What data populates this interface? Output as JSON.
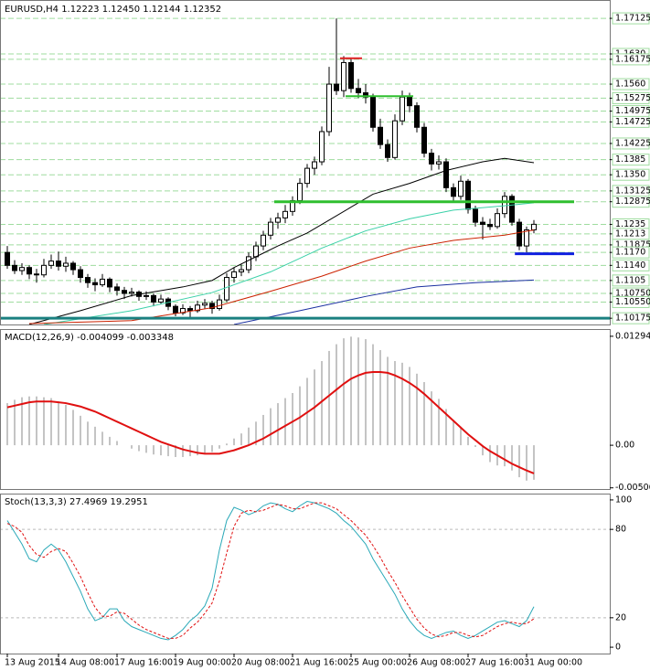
{
  "chart_data": [
    {
      "type": "candlestick",
      "title": "EURUSD,H4  1.12223 1.12450 1.12144 1.12352",
      "categories": [
        "13 Aug 2015",
        null,
        null,
        null,
        null,
        null,
        null,
        "14 Aug 08:00",
        null,
        null,
        null,
        null,
        null,
        null,
        null,
        "17 Aug 16:00",
        null,
        null,
        null,
        null,
        null,
        null,
        null,
        "19 Aug 00:00",
        null,
        null,
        null,
        null,
        null,
        null,
        null,
        "20 Aug 08:00",
        null,
        null,
        null,
        null,
        null,
        null,
        null,
        "21 Aug 16:00",
        null,
        null,
        null,
        null,
        null,
        null,
        null,
        "25 Aug 00:00",
        null,
        null,
        null,
        null,
        null,
        null,
        null,
        "26 Aug 08:00",
        null,
        null,
        null,
        null,
        null,
        null,
        null,
        "27 Aug 16:00",
        null,
        null,
        null,
        null,
        null,
        null,
        null,
        "31 Aug 00:00",
        null
      ],
      "ohlc": [
        [
          1.117,
          1.1185,
          1.1132,
          1.114
        ],
        [
          1.114,
          1.1152,
          1.112,
          1.1128
        ],
        [
          1.1128,
          1.1145,
          1.1118,
          1.1135
        ],
        [
          1.1135,
          1.114,
          1.1108,
          1.112
        ],
        [
          1.112,
          1.1132,
          1.11,
          1.1118
        ],
        [
          1.1118,
          1.1155,
          1.1112,
          1.114
        ],
        [
          1.114,
          1.1165,
          1.1132,
          1.115
        ],
        [
          1.115,
          1.1172,
          1.1128,
          1.1138
        ],
        [
          1.1138,
          1.116,
          1.1125,
          1.1145
        ],
        [
          1.1145,
          1.115,
          1.1118,
          1.113
        ],
        [
          1.113,
          1.1138,
          1.11,
          1.1112
        ],
        [
          1.1112,
          1.112,
          1.1088,
          1.11
        ],
        [
          1.11,
          1.111,
          1.108,
          1.1095
        ],
        [
          1.1095,
          1.112,
          1.109,
          1.1108
        ],
        [
          1.1108,
          1.1112,
          1.1078,
          1.109
        ],
        [
          1.109,
          1.1098,
          1.107,
          1.1082
        ],
        [
          1.1082,
          1.109,
          1.1062,
          1.1075
        ],
        [
          1.1075,
          1.1088,
          1.1068,
          1.1078
        ],
        [
          1.1078,
          1.1082,
          1.1058,
          1.1068
        ],
        [
          1.1068,
          1.108,
          1.106,
          1.107
        ],
        [
          1.107,
          1.1075,
          1.1045,
          1.1055
        ],
        [
          1.1055,
          1.1072,
          1.105,
          1.1062
        ],
        [
          1.1062,
          1.1066,
          1.1036,
          1.1045
        ],
        [
          1.1045,
          1.105,
          1.1022,
          1.103
        ],
        [
          1.103,
          1.105,
          1.1025,
          1.104
        ],
        [
          1.104,
          1.1046,
          1.102,
          1.1035
        ],
        [
          1.1035,
          1.1058,
          1.103,
          1.1048
        ],
        [
          1.1048,
          1.1062,
          1.104,
          1.1052
        ],
        [
          1.1052,
          1.1058,
          1.1028,
          1.104
        ],
        [
          1.104,
          1.1072,
          1.1035,
          1.106
        ],
        [
          1.106,
          1.1122,
          1.1055,
          1.1112
        ],
        [
          1.1112,
          1.1135,
          1.11,
          1.1125
        ],
        [
          1.1125,
          1.1142,
          1.1115,
          1.113
        ],
        [
          1.113,
          1.117,
          1.1122,
          1.116
        ],
        [
          1.116,
          1.1195,
          1.115,
          1.1185
        ],
        [
          1.1185,
          1.122,
          1.1175,
          1.121
        ],
        [
          1.121,
          1.125,
          1.12,
          1.124
        ],
        [
          1.124,
          1.1262,
          1.1225,
          1.125
        ],
        [
          1.125,
          1.128,
          1.1238,
          1.1265
        ],
        [
          1.1265,
          1.13,
          1.1255,
          1.129
        ],
        [
          1.129,
          1.1342,
          1.1282,
          1.133
        ],
        [
          1.133,
          1.1375,
          1.132,
          1.1365
        ],
        [
          1.1365,
          1.1392,
          1.135,
          1.138
        ],
        [
          1.138,
          1.1462,
          1.1372,
          1.145
        ],
        [
          1.145,
          1.16,
          1.144,
          1.156
        ],
        [
          1.156,
          1.17125,
          1.1535,
          1.1545
        ],
        [
          1.1545,
          1.1625,
          1.153,
          1.161
        ],
        [
          1.161,
          1.1618,
          1.154,
          1.155
        ],
        [
          1.155,
          1.1572,
          1.1528,
          1.154
        ],
        [
          1.154,
          1.156,
          1.1515,
          1.153
        ],
        [
          1.153,
          1.1538,
          1.145,
          1.146
        ],
        [
          1.146,
          1.148,
          1.141,
          1.142
        ],
        [
          1.142,
          1.1432,
          1.138,
          1.139
        ],
        [
          1.139,
          1.149,
          1.1385,
          1.1475
        ],
        [
          1.1475,
          1.1545,
          1.1465,
          1.153
        ],
        [
          1.153,
          1.154,
          1.1495,
          1.151
        ],
        [
          1.151,
          1.1518,
          1.1448,
          1.146
        ],
        [
          1.146,
          1.147,
          1.139,
          1.14
        ],
        [
          1.14,
          1.141,
          1.136,
          1.1375
        ],
        [
          1.1375,
          1.1395,
          1.1362,
          1.138
        ],
        [
          1.138,
          1.1388,
          1.131,
          1.132
        ],
        [
          1.132,
          1.133,
          1.1285,
          1.13
        ],
        [
          1.13,
          1.1348,
          1.1292,
          1.1335
        ],
        [
          1.1335,
          1.134,
          1.126,
          1.127
        ],
        [
          1.127,
          1.1278,
          1.123,
          1.124
        ],
        [
          1.124,
          1.1252,
          1.12,
          1.1235
        ],
        [
          1.1235,
          1.1248,
          1.1222,
          1.123
        ],
        [
          1.123,
          1.1272,
          1.1225,
          1.126
        ],
        [
          1.126,
          1.131,
          1.125,
          1.13
        ],
        [
          1.13,
          1.1305,
          1.1232,
          1.124
        ],
        [
          1.124,
          1.1248,
          1.1175,
          1.1185
        ],
        [
          1.1185,
          1.123,
          1.117,
          1.12223
        ],
        [
          1.12223,
          1.1245,
          1.12144,
          1.12352
        ]
      ],
      "ylim": [
        1.1003,
        1.1755
      ],
      "yticks": [
        1.17125,
        {
          "value": 1.163,
          "label": "1.1630"
        },
        1.16175,
        {
          "value": 1.156,
          "label": "1.1560"
        },
        1.15275,
        1.14975,
        1.14725,
        1.14225,
        1.1385,
        {
          "value": 1.135,
          "label": "1.1350"
        },
        1.13125,
        1.12875,
        1.1235,
        1.1213,
        1.11875,
        {
          "value": 1.117,
          "label": "1.1170"
        },
        {
          "value": 1.114,
          "label": "1.1140"
        },
        1.1105,
        {
          "value": 1.1075,
          "label": "1.10750"
        },
        {
          "value": 1.1055,
          "label": "1.10550"
        },
        1.10175
      ],
      "lines": [
        {
          "color": "#000000",
          "x": [
            3,
            10,
            17,
            24,
            28,
            31,
            34,
            37,
            41,
            44,
            47,
            50,
            55,
            60,
            65,
            68,
            72
          ],
          "values": [
            1.1003,
            1.1035,
            1.107,
            1.109,
            1.1105,
            1.1135,
            1.116,
            1.1185,
            1.1215,
            1.1245,
            1.1275,
            1.1305,
            1.133,
            1.136,
            1.138,
            1.1388,
            1.1378
          ]
        },
        {
          "color": "#3ad1a8",
          "x": [
            5,
            17,
            28,
            36,
            43,
            49,
            55,
            61,
            68,
            72
          ],
          "values": [
            1.1003,
            1.1035,
            1.1077,
            1.1125,
            1.118,
            1.122,
            1.1248,
            1.1268,
            1.1278,
            1.1285
          ]
        },
        {
          "color": "#cc2200",
          "x": [
            3,
            17,
            28,
            36,
            43,
            49,
            55,
            61,
            68,
            72
          ],
          "values": [
            1.1005,
            1.1012,
            1.1042,
            1.108,
            1.1115,
            1.115,
            1.118,
            1.1198,
            1.121,
            1.1222
          ]
        },
        {
          "color": "#1a2fa0",
          "x": [
            31,
            40,
            49,
            56,
            64,
            72
          ],
          "values": [
            1.1003,
            1.1035,
            1.1068,
            1.109,
            1.11,
            1.1106
          ]
        }
      ],
      "levels": [
        {
          "value": 1.162,
          "x": [
            45.5,
            48.5
          ],
          "color": "#e02020",
          "width": 2
        },
        {
          "value": 1.1532,
          "x": [
            46.25,
            55.5
          ],
          "color": "#2fbf2f",
          "width": 2
        },
        {
          "value": 1.12875,
          "x": [
            36.5,
            77.5
          ],
          "color": "#2fbf2f",
          "width": 3
        },
        {
          "value": 1.1167,
          "x": [
            69.4,
            77.5
          ],
          "color": "#1020e0",
          "width": 3
        },
        {
          "value": 1.10175,
          "x": [
            -1,
            82.4
          ],
          "color": "#1a8080",
          "width": 3
        }
      ]
    },
    {
      "type": "macd",
      "title": "MACD(12,26,9) -0.004099 -0.003348",
      "ylim": [
        -0.0052,
        0.0138
      ],
      "yticks": [
        0.012943,
        {
          "value": 0,
          "label": "0.00"
        },
        -0.00506
      ],
      "histogram": {
        "color": "#b0b0b0",
        "values": [
          0.005,
          0.0054,
          0.0057,
          0.0058,
          0.0058,
          0.0057,
          0.0056,
          0.0052,
          0.0048,
          0.0042,
          0.0035,
          0.0028,
          0.0022,
          0.0016,
          0.001,
          0.0005,
          0.0,
          -0.0004,
          -0.0007,
          -0.0009,
          -0.0011,
          -0.0012,
          -0.0013,
          -0.0014,
          -0.0014,
          -0.0013,
          -0.0012,
          -0.001,
          -0.0008,
          -0.0004,
          0.0002,
          0.0008,
          0.0014,
          0.0021,
          0.0028,
          0.0036,
          0.0044,
          0.005,
          0.0056,
          0.0062,
          0.007,
          0.008,
          0.009,
          0.01,
          0.0112,
          0.012,
          0.0127,
          0.0129,
          0.0128,
          0.0126,
          0.012,
          0.0113,
          0.0105,
          0.01,
          0.0098,
          0.0093,
          0.0085,
          0.0075,
          0.0064,
          0.0055,
          0.0043,
          0.003,
          0.0022,
          0.001,
          -0.0002,
          -0.0012,
          -0.002,
          -0.0024,
          -0.0025,
          -0.003,
          -0.0038,
          -0.0042,
          -0.004099
        ]
      },
      "signal": {
        "color": "#e01010",
        "values": [
          0.0045,
          0.0047,
          0.0049,
          0.0051,
          0.0052,
          0.0052,
          0.0052,
          0.0051,
          0.005,
          0.0048,
          0.0046,
          0.0043,
          0.004,
          0.0036,
          0.0032,
          0.0028,
          0.0024,
          0.002,
          0.0016,
          0.0012,
          0.0008,
          0.0004,
          0.0001,
          -0.0002,
          -0.0005,
          -0.0007,
          -0.0009,
          -0.001,
          -0.001,
          -0.001,
          -0.0008,
          -0.0006,
          -0.0003,
          0.0,
          0.0004,
          0.0008,
          0.0013,
          0.0018,
          0.0023,
          0.0028,
          0.0033,
          0.0039,
          0.0045,
          0.0052,
          0.0059,
          0.0066,
          0.0073,
          0.0079,
          0.0083,
          0.0086,
          0.0087,
          0.0087,
          0.0086,
          0.0083,
          0.0079,
          0.0074,
          0.0068,
          0.0061,
          0.0053,
          0.0045,
          0.0037,
          0.0029,
          0.0021,
          0.0013,
          0.0006,
          -0.0001,
          -0.0007,
          -0.0012,
          -0.0017,
          -0.0022,
          -0.0026,
          -0.003,
          -0.003348
        ]
      }
    },
    {
      "type": "stochastic",
      "title": "Stoch(13,3,3) 27.4969 19.2951",
      "ylim": [
        -4.3,
        104.3
      ],
      "yticks": [
        100,
        80,
        20,
        0
      ],
      "series": [
        {
          "color": "#2aa9b8",
          "dashed": false,
          "values": [
            86,
            78,
            70,
            60,
            58,
            66,
            70,
            66,
            58,
            48,
            38,
            26,
            18,
            20,
            26,
            26,
            18,
            14,
            12,
            10,
            8,
            6,
            5,
            8,
            12,
            18,
            22,
            28,
            40,
            66,
            86,
            95,
            93,
            90,
            92,
            96,
            98,
            97,
            94,
            92,
            96,
            99,
            98,
            96,
            94,
            91,
            86,
            82,
            76,
            70,
            60,
            52,
            44,
            36,
            26,
            18,
            12,
            8,
            6,
            8,
            10,
            11,
            8,
            6,
            8,
            11,
            14,
            17,
            18,
            16,
            14,
            18,
            27.4969
          ]
        },
        {
          "color": "#e01010",
          "dashed": true,
          "values": [
            84,
            82,
            78,
            69,
            63,
            61,
            65,
            67,
            65,
            57,
            48,
            37,
            27,
            21,
            21,
            24,
            23,
            19,
            15,
            12,
            10,
            8,
            6,
            6,
            8,
            13,
            17,
            23,
            30,
            45,
            64,
            82,
            91,
            93,
            92,
            93,
            95,
            97,
            96,
            94,
            94,
            96,
            98,
            98,
            96,
            94,
            90,
            86,
            81,
            76,
            69,
            61,
            52,
            44,
            35,
            27,
            19,
            13,
            9,
            7,
            8,
            10,
            10,
            8,
            7,
            8,
            11,
            14,
            16,
            17,
            16,
            16,
            19.2951
          ]
        }
      ]
    }
  ]
}
